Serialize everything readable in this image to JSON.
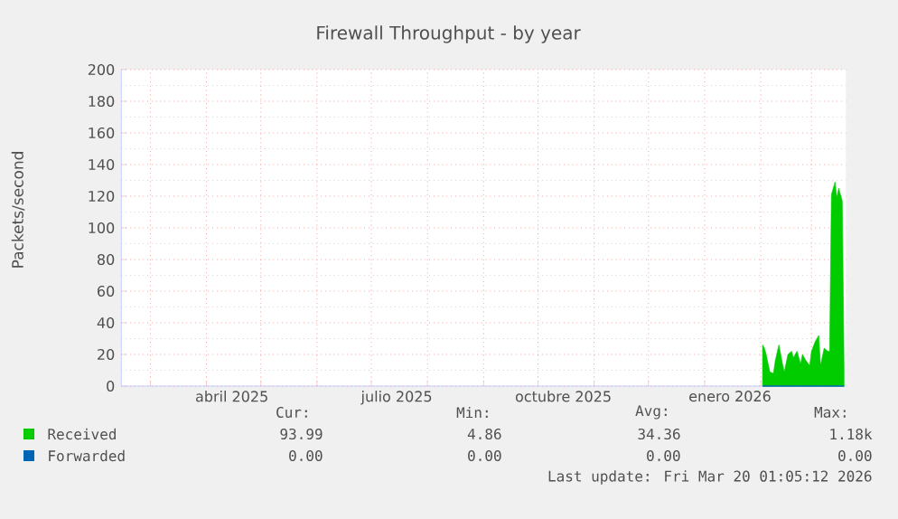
{
  "chart_data": {
    "type": "area",
    "title": "Firewall Throughput - by year",
    "ylabel": "Packets/second",
    "series": [
      {
        "name": "Received",
        "color": "#00cc00",
        "x": [
          "2026-02-02",
          "2026-02-03",
          "2026-02-04",
          "2026-02-06",
          "2026-02-08",
          "2026-02-09",
          "2026-02-11",
          "2026-02-13",
          "2026-02-14",
          "2026-02-16",
          "2026-02-18",
          "2026-02-19",
          "2026-02-21",
          "2026-02-23",
          "2026-02-24",
          "2026-02-26",
          "2026-02-28",
          "2026-03-01",
          "2026-03-03",
          "2026-03-05",
          "2026-03-06",
          "2026-03-08",
          "2026-03-10",
          "2026-03-11",
          "2026-03-12",
          "2026-03-14",
          "2026-03-15",
          "2026-03-16",
          "2026-03-18",
          "2026-03-19"
        ],
        "values": [
          26,
          24,
          20,
          9,
          8,
          16,
          26,
          14,
          9,
          20,
          22,
          18,
          22,
          14,
          20,
          16,
          13,
          22,
          28,
          32,
          13,
          24,
          22,
          22,
          121,
          129,
          119,
          125,
          117,
          10
        ]
      },
      {
        "name": "Forwarded",
        "color": "#0066b3",
        "type": "line",
        "x": [
          "2026-02-02",
          "2026-03-19"
        ],
        "values": [
          0,
          0
        ]
      }
    ],
    "xlim": [
      "2025-02-13",
      "2026-03-20"
    ],
    "xticks": [
      {
        "value": "2025-03-01",
        "label": null
      },
      {
        "value": "2025-04-01",
        "label": null
      },
      {
        "value": "2025-04-15",
        "label": "abril 2025"
      },
      {
        "value": "2025-05-01",
        "label": null
      },
      {
        "value": "2025-06-01",
        "label": null
      },
      {
        "value": "2025-07-01",
        "label": null
      },
      {
        "value": "2025-07-15",
        "label": "julio 2025"
      },
      {
        "value": "2025-08-01",
        "label": null
      },
      {
        "value": "2025-09-01",
        "label": null
      },
      {
        "value": "2025-10-01",
        "label": null
      },
      {
        "value": "2025-10-15",
        "label": "octubre 2025"
      },
      {
        "value": "2025-11-01",
        "label": null
      },
      {
        "value": "2025-12-01",
        "label": null
      },
      {
        "value": "2026-01-01",
        "label": null
      },
      {
        "value": "2026-01-15",
        "label": "enero 2026"
      },
      {
        "value": "2026-02-01",
        "label": null
      },
      {
        "value": "2026-03-01",
        "label": null
      }
    ],
    "ylim": [
      0,
      200
    ],
    "yticks": [
      0,
      20,
      40,
      60,
      80,
      100,
      120,
      140,
      160,
      180,
      200
    ],
    "grid": true,
    "legend": "bottom left",
    "annotations": [
      "Cur:",
      "Min:",
      "Avg:",
      "Max:",
      "93.99",
      "4.86",
      "34.36",
      "1.18k",
      "0.00",
      "0.00",
      "0.00",
      "0.00",
      "Last update: Fri Mar 20 01:05:12 2026"
    ]
  }
}
